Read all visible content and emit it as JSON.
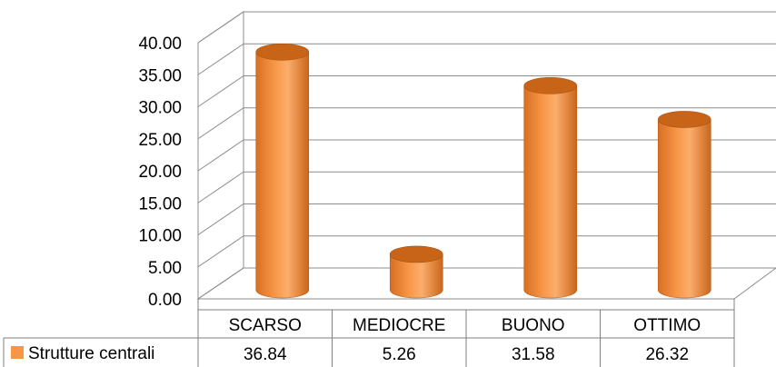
{
  "chart_data": {
    "type": "bar",
    "style": "3d-cylinder",
    "categories": [
      "SCARSO",
      "MEDIOCRE",
      "BUONO",
      "OTTIMO"
    ],
    "series": [
      {
        "name": "Strutture centrali",
        "values": [
          36.84,
          5.26,
          31.58,
          26.32
        ],
        "value_labels": [
          "36.84",
          "5.26",
          "31.58",
          "26.32"
        ]
      }
    ],
    "y_ticks": [
      "0.00",
      "5.00",
      "10.00",
      "15.00",
      "20.00",
      "25.00",
      "30.00",
      "35.00",
      "40.00"
    ],
    "ylim": [
      0,
      40
    ],
    "grid": true,
    "legend": "data-table",
    "colors": {
      "bar": "#F79646",
      "bar_dark": "#C86418",
      "bar_light": "#FBB77A",
      "grid": "#8C8C8C",
      "table": "#7F7F7F"
    }
  }
}
